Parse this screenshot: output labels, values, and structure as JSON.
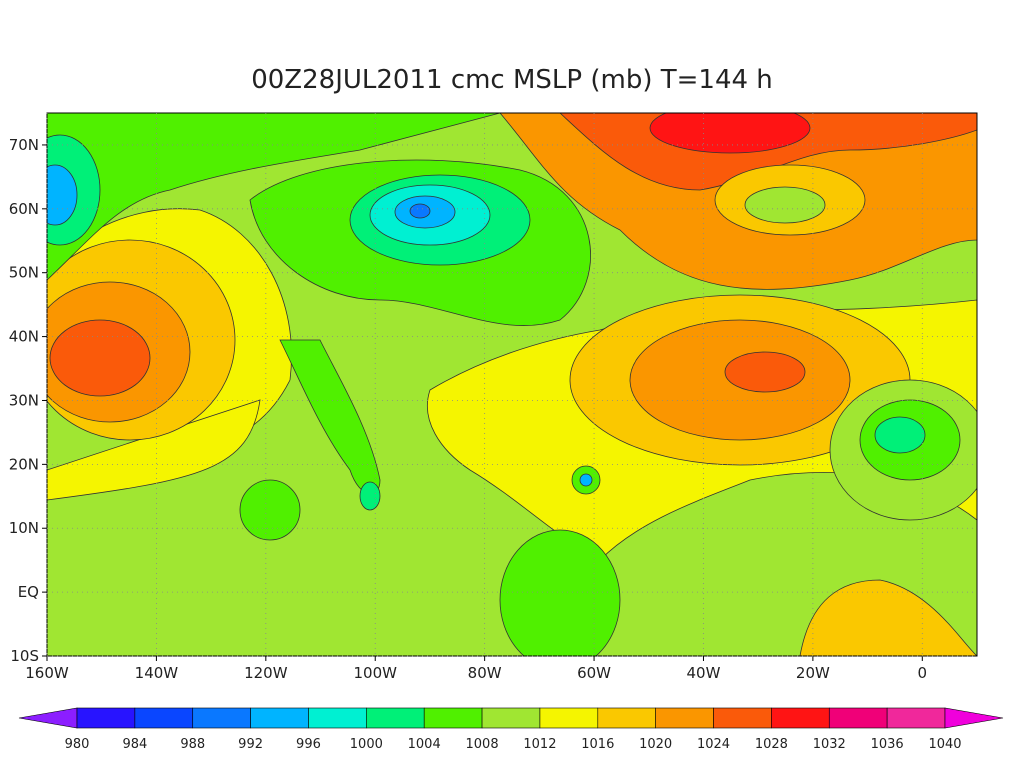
{
  "map": {
    "title": "00Z28JUL2011 cmc MSLP (mb) T=144 h",
    "xlim": [
      -160,
      10
    ],
    "ylim": [
      -10,
      75
    ],
    "xticks": [
      {
        "value": -160,
        "label": "160W"
      },
      {
        "value": -140,
        "label": "140W"
      },
      {
        "value": -120,
        "label": "120W"
      },
      {
        "value": -100,
        "label": "100W"
      },
      {
        "value": -80,
        "label": "80W"
      },
      {
        "value": -60,
        "label": "60W"
      },
      {
        "value": -40,
        "label": "40W"
      },
      {
        "value": -20,
        "label": "20W"
      },
      0
    ],
    "yticks": [
      {
        "value": -10,
        "label": "10S"
      },
      {
        "value": 0,
        "label": "EQ"
      },
      {
        "value": 10,
        "label": "10N"
      },
      {
        "value": 20,
        "label": "20N"
      },
      {
        "value": 30,
        "label": "30N"
      },
      {
        "value": 40,
        "label": "40N"
      },
      {
        "value": 50,
        "label": "50N"
      },
      {
        "value": 60,
        "label": "60N"
      },
      {
        "value": 70,
        "label": "70N"
      }
    ],
    "colorbar": {
      "levels": [
        980,
        984,
        988,
        992,
        996,
        1000,
        1004,
        1008,
        1012,
        1016,
        1020,
        1024,
        1028,
        1032,
        1036,
        1040
      ],
      "colors": [
        "#8c1eff",
        "#2814ff",
        "#0a46ff",
        "#0a78ff",
        "#00b4ff",
        "#00f0d2",
        "#00f078",
        "#50f000",
        "#a0e632",
        "#f5f500",
        "#fac800",
        "#fa9600",
        "#fa5a0a",
        "#ff1414",
        "#f00078",
        "#f0289b",
        "#f000dc"
      ]
    }
  }
}
